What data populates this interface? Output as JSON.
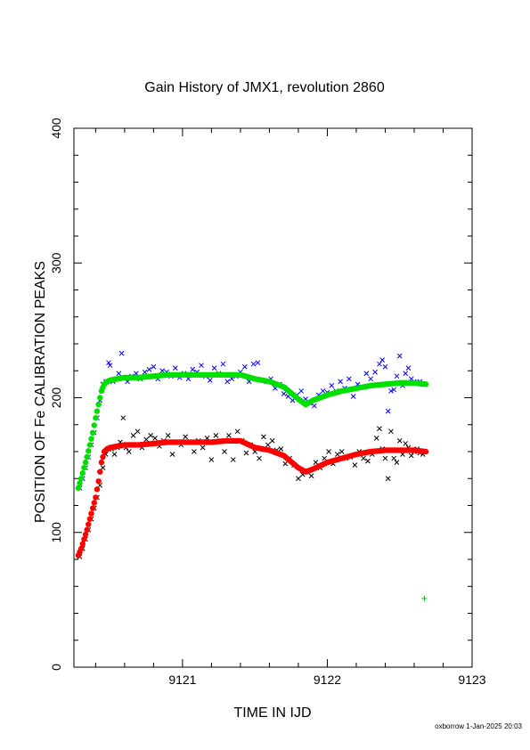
{
  "chart_data": {
    "type": "scatter",
    "title": "Gain History of JMX1, revolution 2860",
    "xlabel": "TIME IN IJD",
    "ylabel": "POSITION OF Fe CALIBRATION PEAKS",
    "xlim": [
      9120.25,
      9123.0
    ],
    "ylim": [
      0,
      400
    ],
    "xticks": [
      "9121",
      "9122",
      "9123"
    ],
    "yticks": [
      "0",
      "100",
      "200",
      "300",
      "400"
    ],
    "grid": false,
    "series": [
      {
        "color": "#0000ff",
        "marker": "x",
        "x": [
          9120.29,
          9120.31,
          9120.33,
          9120.35,
          9120.37,
          9120.39,
          9120.41,
          9120.43,
          9120.45,
          9120.47,
          9120.49,
          9120.5,
          9120.52,
          9120.54,
          9120.56,
          9120.58,
          9120.6,
          9120.62,
          9120.65,
          9120.68,
          9120.71,
          9120.74,
          9120.77,
          9120.8,
          9120.83,
          9120.86,
          9120.89,
          9120.92,
          9120.95,
          9120.98,
          9121.01,
          9121.04,
          9121.07,
          9121.1,
          9121.13,
          9121.16,
          9121.19,
          9121.22,
          9121.25,
          9121.28,
          9121.31,
          9121.34,
          9121.37,
          9121.4,
          9121.43,
          9121.46,
          9121.49,
          9121.52,
          9121.55,
          9121.58,
          9121.61,
          9121.64,
          9121.67,
          9121.7,
          9121.73,
          9121.76,
          9121.79,
          9121.82,
          9121.85,
          9121.88,
          9121.91,
          9121.94,
          9121.97,
          9122.0,
          9122.03,
          9122.06,
          9122.09,
          9122.12,
          9122.15,
          9122.18,
          9122.21,
          9122.24,
          9122.27,
          9122.3,
          9122.33,
          9122.36,
          9122.38,
          9122.4,
          9122.42,
          9122.44,
          9122.46,
          9122.48,
          9122.5,
          9122.52,
          9122.54,
          9122.56,
          9122.58,
          9122.6,
          9122.62,
          9122.64,
          9122.66
        ],
        "y": [
          133,
          140,
          148,
          156,
          165,
          174,
          185,
          198,
          210,
          212,
          226,
          224,
          212,
          214,
          218,
          233,
          215,
          212,
          216,
          218,
          214,
          219,
          221,
          223,
          214,
          220,
          219,
          216,
          222,
          215,
          218,
          214,
          221,
          219,
          224,
          216,
          213,
          222,
          218,
          225,
          212,
          214,
          216,
          219,
          223,
          212,
          225,
          226,
          213,
          212,
          214,
          207,
          210,
          203,
          201,
          198,
          202,
          205,
          199,
          196,
          194,
          202,
          205,
          204,
          209,
          205,
          212,
          207,
          214,
          201,
          210,
          208,
          218,
          214,
          219,
          225,
          228,
          223,
          190,
          205,
          206,
          216,
          231,
          209,
          218,
          222,
          214,
          212,
          211,
          212,
          210
        ]
      },
      {
        "color": "#000000",
        "marker": "x",
        "x": [
          9120.29,
          9120.31,
          9120.33,
          9120.35,
          9120.37,
          9120.39,
          9120.41,
          9120.43,
          9120.45,
          9120.47,
          9120.49,
          9120.51,
          9120.53,
          9120.55,
          9120.57,
          9120.59,
          9120.61,
          9120.63,
          9120.66,
          9120.69,
          9120.72,
          9120.75,
          9120.78,
          9120.81,
          9120.84,
          9120.87,
          9120.9,
          9120.93,
          9120.96,
          9120.99,
          9121.02,
          9121.05,
          9121.08,
          9121.11,
          9121.14,
          9121.17,
          9121.2,
          9121.23,
          9121.26,
          9121.29,
          9121.32,
          9121.35,
          9121.38,
          9121.41,
          9121.44,
          9121.47,
          9121.5,
          9121.53,
          9121.56,
          9121.59,
          9121.62,
          9121.65,
          9121.68,
          9121.71,
          9121.74,
          9121.77,
          9121.8,
          9121.83,
          9121.86,
          9121.89,
          9121.92,
          9121.95,
          9121.98,
          9122.01,
          9122.04,
          9122.07,
          9122.1,
          9122.13,
          9122.16,
          9122.19,
          9122.22,
          9122.25,
          9122.28,
          9122.31,
          9122.34,
          9122.36,
          9122.38,
          9122.4,
          9122.42,
          9122.44,
          9122.46,
          9122.48,
          9122.5,
          9122.52,
          9122.54,
          9122.56,
          9122.58,
          9122.6,
          9122.62,
          9122.64,
          9122.66
        ],
        "y": [
          82,
          88,
          95,
          102,
          110,
          118,
          126,
          135,
          148,
          158,
          162,
          162,
          158,
          163,
          167,
          185,
          163,
          160,
          172,
          175,
          163,
          169,
          172,
          170,
          164,
          168,
          172,
          158,
          167,
          165,
          171,
          167,
          160,
          168,
          163,
          170,
          154,
          172,
          168,
          160,
          172,
          154,
          175,
          168,
          159,
          165,
          160,
          155,
          171,
          165,
          168,
          161,
          162,
          151,
          155,
          150,
          140,
          143,
          145,
          142,
          152,
          148,
          155,
          160,
          151,
          158,
          160,
          155,
          156,
          150,
          160,
          155,
          153,
          158,
          170,
          177,
          162,
          155,
          140,
          175,
          155,
          152,
          168,
          158,
          166,
          163,
          157,
          160,
          162,
          159,
          158
        ]
      },
      {
        "color": "#00e000",
        "marker": "fit",
        "x": [
          9120.28,
          9120.3,
          9120.32,
          9120.34,
          9120.36,
          9120.38,
          9120.4,
          9120.42,
          9120.44,
          9120.46,
          9120.48,
          9120.5,
          9120.55,
          9120.6,
          9120.7,
          9120.8,
          9120.9,
          9121.0,
          9121.1,
          9121.2,
          9121.3,
          9121.4,
          9121.5,
          9121.6,
          9121.7,
          9121.8,
          9121.85,
          9121.9,
          9122.0,
          9122.1,
          9122.2,
          9122.3,
          9122.4,
          9122.5,
          9122.6,
          9122.68
        ],
        "y": [
          133,
          140,
          148,
          156,
          165,
          174,
          185,
          195,
          205,
          210,
          212,
          213,
          214,
          215,
          215,
          216,
          217,
          217,
          217,
          217,
          217,
          217,
          214,
          212,
          208,
          199,
          195,
          198,
          202,
          205,
          207,
          209,
          210,
          211,
          211,
          210
        ]
      },
      {
        "color": "#ff0000",
        "marker": "fit",
        "x": [
          9120.28,
          9120.3,
          9120.32,
          9120.34,
          9120.36,
          9120.38,
          9120.4,
          9120.42,
          9120.44,
          9120.46,
          9120.48,
          9120.5,
          9120.55,
          9120.6,
          9120.7,
          9120.8,
          9120.9,
          9121.0,
          9121.1,
          9121.2,
          9121.3,
          9121.4,
          9121.5,
          9121.6,
          9121.7,
          9121.8,
          9121.85,
          9121.9,
          9122.0,
          9122.1,
          9122.2,
          9122.3,
          9122.4,
          9122.5,
          9122.6,
          9122.68
        ],
        "y": [
          83,
          88,
          95,
          102,
          110,
          118,
          126,
          138,
          152,
          160,
          162,
          163,
          164,
          165,
          165,
          166,
          167,
          167,
          167,
          167,
          168,
          168,
          163,
          161,
          157,
          148,
          145,
          147,
          152,
          155,
          158,
          160,
          161,
          161,
          161,
          160
        ]
      },
      {
        "color": "#00c000",
        "marker": "+",
        "x": [
          9122.67
        ],
        "y": [
          51
        ]
      }
    ],
    "footer": "oxborrow  1-Jan-2025 20:03"
  }
}
